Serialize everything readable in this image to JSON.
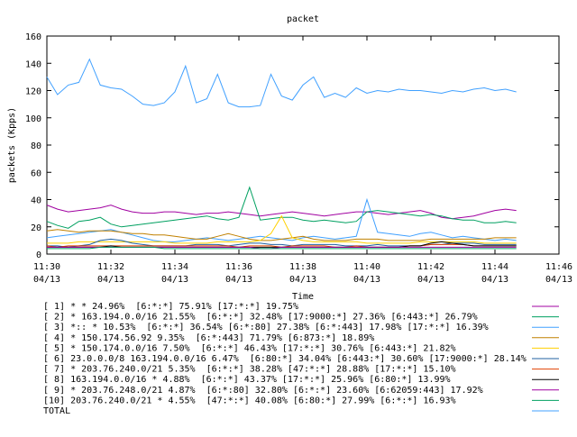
{
  "chart_data": {
    "type": "line",
    "title": "packet",
    "xlabel": "Time",
    "ylabel": "packets (Kpps)",
    "ylim": [
      0,
      160
    ],
    "yticks": [
      0,
      20,
      40,
      60,
      80,
      100,
      120,
      140,
      160
    ],
    "xlim": [
      "11:30",
      "11:46"
    ],
    "xticks": [
      {
        "time": "11:30",
        "date": "04/13"
      },
      {
        "time": "11:32",
        "date": "04/13"
      },
      {
        "time": "11:34",
        "date": "04/13"
      },
      {
        "time": "11:36",
        "date": "04/13"
      },
      {
        "time": "11:38",
        "date": "04/13"
      },
      {
        "time": "11:40",
        "date": "04/13"
      },
      {
        "time": "11:42",
        "date": "04/13"
      },
      {
        "time": "11:44",
        "date": "04/13"
      },
      {
        "time": "11:46",
        "date": "04/13"
      }
    ],
    "x": [
      "11:30:00",
      "11:30:20",
      "11:30:40",
      "11:31:00",
      "11:31:20",
      "11:31:40",
      "11:32:00",
      "11:32:20",
      "11:32:40",
      "11:33:00",
      "11:33:20",
      "11:33:40",
      "11:34:00",
      "11:34:20",
      "11:34:40",
      "11:35:00",
      "11:35:20",
      "11:35:40",
      "11:36:00",
      "11:36:20",
      "11:36:40",
      "11:37:00",
      "11:37:20",
      "11:37:40",
      "11:38:00",
      "11:38:20",
      "11:38:40",
      "11:39:00",
      "11:39:20",
      "11:39:40",
      "11:40:00",
      "11:40:20",
      "11:40:40",
      "11:41:00",
      "11:41:20",
      "11:41:40",
      "11:42:00",
      "11:42:20",
      "11:42:40",
      "11:43:00",
      "11:43:20",
      "11:43:40",
      "11:44:00",
      "11:44:20",
      "11:44:40"
    ],
    "series": [
      {
        "name": "[ 1] * * 24.96%  [6:*:*] 75.91% [17:*:*] 19.75%",
        "color": "#a000a0",
        "values": [
          36,
          33,
          31,
          32,
          33,
          34,
          36,
          33,
          31,
          30,
          30,
          31,
          31,
          30,
          29,
          30,
          30,
          31,
          30,
          29,
          28,
          29,
          30,
          31,
          30,
          29,
          28,
          29,
          30,
          31,
          31,
          30,
          29,
          30,
          31,
          32,
          30,
          27,
          26,
          27,
          28,
          30,
          32,
          33,
          32
        ]
      },
      {
        "name": "[ 2] * 163.194.0.0/16 21.55%  [6:*:*] 32.48% [17:9000:*] 27.36% [6:443:*] 26.79%",
        "color": "#00a060",
        "values": [
          24,
          21,
          19,
          24,
          25,
          27,
          22,
          20,
          21,
          22,
          23,
          24,
          25,
          26,
          27,
          28,
          26,
          25,
          27,
          49,
          25,
          26,
          27,
          27,
          25,
          24,
          25,
          24,
          23,
          24,
          31,
          32,
          31,
          30,
          29,
          28,
          29,
          28,
          26,
          25,
          25,
          23,
          23,
          24,
          23
        ]
      },
      {
        "name": "[ 3] *:: * 10.53%  [6:*:*] 36.54% [6:*:80] 27.38% [6:*:443] 17.98% [17:*:*] 16.39%",
        "color": "#40a0ff",
        "values": [
          12,
          13,
          14,
          15,
          16,
          17,
          18,
          16,
          14,
          12,
          10,
          9,
          9,
          10,
          11,
          12,
          11,
          10,
          11,
          12,
          13,
          12,
          11,
          10,
          12,
          13,
          12,
          11,
          12,
          13,
          40,
          16,
          15,
          14,
          13,
          15,
          16,
          14,
          12,
          13,
          12,
          11,
          10,
          11,
          10
        ]
      },
      {
        "name": "[ 4] * 150.174.56.92 9.35%  [6:*:443] 71.79% [6:873:*] 18.89%",
        "color": "#c08000",
        "values": [
          17,
          18,
          17,
          16,
          17,
          17,
          17,
          16,
          15,
          15,
          14,
          14,
          13,
          12,
          11,
          11,
          13,
          15,
          13,
          11,
          10,
          10,
          11,
          12,
          13,
          11,
          10,
          10,
          10,
          11,
          11,
          11,
          10,
          10,
          10,
          10,
          11,
          11,
          11,
          11,
          11,
          11,
          12,
          12,
          12
        ]
      },
      {
        "name": "[ 5] * 150.174.0.0/16 7.50%  [6:*:*] 46.43% [17:*:*] 30.76% [6:443:*] 21.82%",
        "color": "#ffd000",
        "values": [
          8,
          8,
          8,
          9,
          9,
          9,
          9,
          9,
          9,
          9,
          9,
          9,
          8,
          8,
          8,
          8,
          9,
          9,
          9,
          9,
          10,
          15,
          28,
          12,
          10,
          9,
          9,
          9,
          9,
          9,
          8,
          8,
          8,
          8,
          8,
          9,
          9,
          9,
          9,
          9,
          9,
          8,
          8,
          8,
          8
        ]
      },
      {
        "name": "[ 6] 23.0.0.0/8 163.194.0.0/16 6.47%  [6:80:*] 34.04% [6:443:*] 30.60% [17:9000:*] 28.14%",
        "color": "#2060a0",
        "values": [
          6,
          6,
          5,
          6,
          7,
          10,
          11,
          10,
          8,
          7,
          6,
          6,
          6,
          6,
          7,
          7,
          7,
          6,
          7,
          8,
          8,
          7,
          7,
          6,
          7,
          7,
          7,
          7,
          6,
          6,
          6,
          7,
          6,
          6,
          6,
          6,
          7,
          7,
          8,
          8,
          8,
          7,
          7,
          7,
          7
        ]
      },
      {
        "name": "[ 7] * 203.76.240.0/21 5.35%  [6:*:*] 38.28% [47:*:*] 28.88% [17:*:*] 15.10%",
        "color": "#e04000",
        "values": [
          6,
          5,
          6,
          6,
          6,
          6,
          6,
          6,
          6,
          6,
          6,
          6,
          6,
          6,
          6,
          6,
          6,
          6,
          5,
          6,
          6,
          6,
          5,
          6,
          6,
          6,
          6,
          5,
          5,
          6,
          5,
          5,
          5,
          5,
          6,
          6,
          7,
          7,
          7,
          7,
          6,
          6,
          6,
          6,
          6
        ]
      },
      {
        "name": "[ 8] 163.194.0.0/16 * 4.88%  [6:*:*] 43.37% [17:*:*] 25.96% [6:80:*] 13.99%",
        "color": "#000000",
        "values": [
          5,
          5,
          5,
          5,
          5,
          5,
          6,
          5,
          5,
          5,
          5,
          5,
          5,
          5,
          5,
          5,
          5,
          5,
          5,
          5,
          5,
          5,
          5,
          5,
          5,
          5,
          5,
          5,
          5,
          5,
          5,
          5,
          5,
          5,
          6,
          6,
          8,
          9,
          8,
          7,
          6,
          6,
          6,
          6,
          6
        ]
      },
      {
        "name": "[ 9] * 203.76.248.0/21 4.87%  [6:*:80] 32.80% [6:*:*] 23.60% [6:62059:443] 17.92%",
        "color": "#a000a0",
        "values": [
          5,
          5,
          5,
          5,
          5,
          5,
          5,
          5,
          5,
          5,
          5,
          5,
          5,
          5,
          5,
          5,
          5,
          5,
          5,
          5,
          4,
          4,
          5,
          5,
          5,
          5,
          5,
          5,
          5,
          5,
          5,
          5,
          5,
          5,
          5,
          5,
          5,
          5,
          5,
          5,
          5,
          5,
          5,
          5,
          5
        ]
      },
      {
        "name": "[10] 203.76.240.0/21 * 4.55%  [47:*:*] 40.08% [6:80:*] 27.99% [6:*:*] 16.93%",
        "color": "#00a060",
        "values": [
          4,
          4,
          4,
          4,
          4,
          5,
          5,
          5,
          5,
          5,
          5,
          4,
          4,
          4,
          4,
          4,
          4,
          4,
          4,
          4,
          4,
          4,
          4,
          4,
          4,
          4,
          4,
          4,
          4,
          4,
          4,
          4,
          4,
          4,
          4,
          4,
          4,
          4,
          4,
          4,
          4,
          4,
          4,
          4,
          4
        ]
      },
      {
        "name": "TOTAL",
        "color": "#40a0ff",
        "values": [
          130,
          117,
          124,
          126,
          143,
          124,
          122,
          121,
          116,
          110,
          109,
          111,
          119,
          138,
          111,
          114,
          132,
          111,
          108,
          108,
          109,
          132,
          116,
          113,
          124,
          130,
          115,
          118,
          115,
          122,
          118,
          120,
          119,
          121,
          120,
          120,
          119,
          118,
          120,
          119,
          121,
          122,
          120,
          121,
          119
        ]
      }
    ]
  }
}
